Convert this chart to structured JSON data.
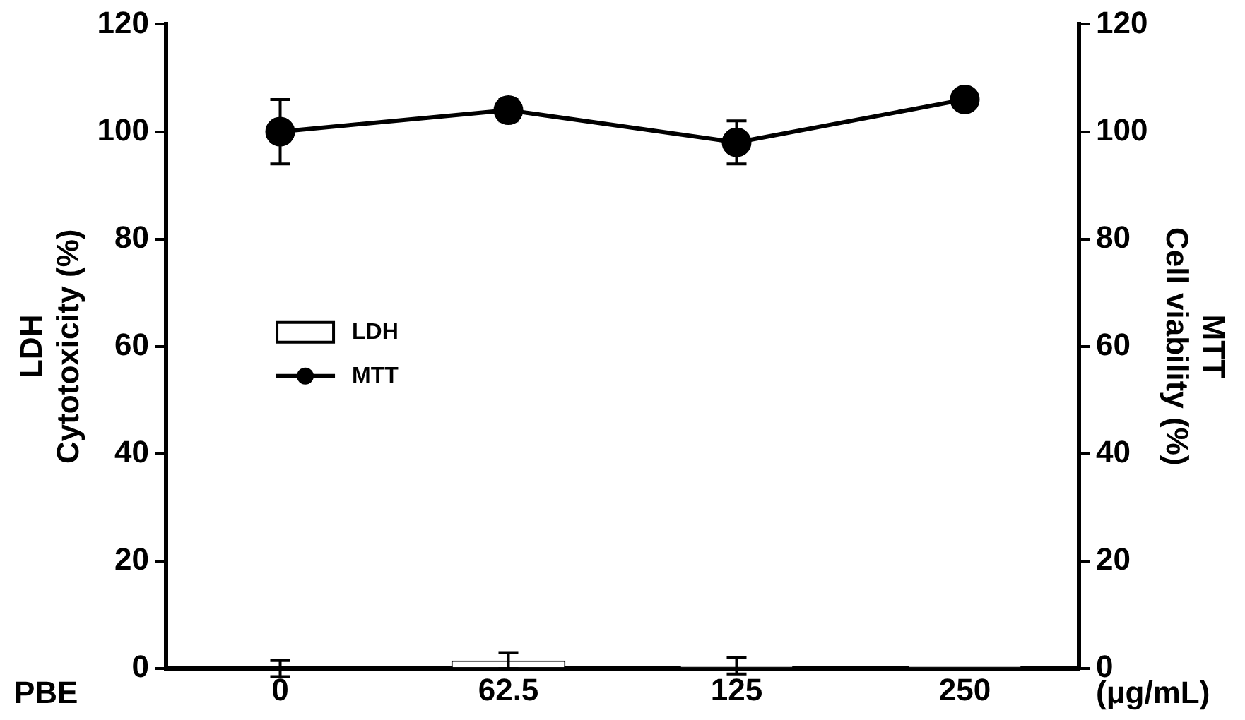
{
  "chart_data": {
    "type": "bar",
    "xlabel": "PBE",
    "ylabel": "LDH\nCytotoxicity (%)",
    "y2label": "MTT\nCell viability (%)",
    "annotations": [
      "(μg/mL)"
    ],
    "categories": [
      "0",
      "62.5",
      "125",
      "250"
    ],
    "series": [
      {
        "name": "LDH",
        "color": "#ffffff",
        "values": [
          0,
          1.5,
          0.5,
          0.5
        ],
        "errors": [
          1.5,
          1.5,
          1.5,
          null
        ]
      },
      {
        "name": "MTT",
        "type": "line",
        "axis": "y2",
        "color": "#000000",
        "values": [
          100,
          104,
          98,
          106
        ],
        "errors": [
          6,
          2,
          4,
          null
        ]
      }
    ],
    "ylim": [
      0,
      120
    ],
    "yticks": [
      0,
      20,
      40,
      60,
      80,
      100,
      120
    ],
    "y2lim": [
      0,
      120
    ],
    "y2ticks": [
      0,
      20,
      40,
      60,
      80,
      100,
      120
    ],
    "grid": false,
    "legend": "left",
    "marker": "circle",
    "line_style": "solid"
  }
}
